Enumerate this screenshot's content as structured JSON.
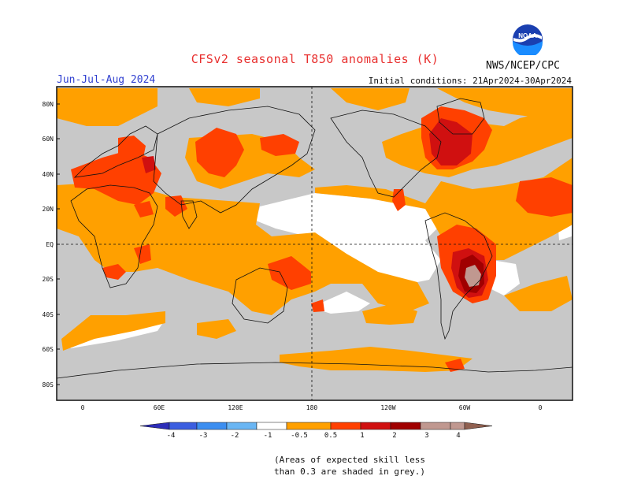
{
  "header": {
    "title": "CFSv2 seasonal T850 anomalies (K)",
    "period": "Jun-Jul-Aug 2024",
    "initial_conditions": "Initial conditions: 21Apr2024-30Apr2024",
    "organization": "NWS/NCEP/CPC",
    "logo_text": "NOAA"
  },
  "map": {
    "lat_labels": [
      "80N",
      "60N",
      "40N",
      "20N",
      "EQ",
      "20S",
      "40S",
      "60S",
      "80S"
    ],
    "lon_labels": [
      "0",
      "60E",
      "120E",
      "180",
      "120W",
      "60W",
      "0"
    ],
    "land_mask_color": "#c8c8c8",
    "regions": [
      {
        "name": "arctic-warm",
        "level": "0.5-1"
      },
      {
        "name": "europe-warm",
        "level": "1-2"
      },
      {
        "name": "siberia-warm",
        "level": "1-2"
      },
      {
        "name": "greenland-warm",
        "level": "1-2"
      },
      {
        "name": "north-atlantic-warm",
        "level": "1-2"
      },
      {
        "name": "southern-south-america",
        "level": "3-4"
      },
      {
        "name": "tropical-pacific-neutral",
        "level": "-0.5-0.5"
      },
      {
        "name": "southern-ocean-neutral",
        "level": "-0.5-0.5"
      }
    ]
  },
  "colorbar": {
    "ticks": [
      "-4",
      "-3",
      "-2",
      "-1",
      "-0.5",
      "0.5",
      "1",
      "2",
      "3",
      "4"
    ],
    "colors": [
      "#2d2db8",
      "#3b5ee0",
      "#3c8ef0",
      "#6ab6f4",
      "#ffffff",
      "#ffa000",
      "#ff4000",
      "#d01010",
      "#a00000",
      "#c09890",
      "#906050"
    ]
  },
  "note": {
    "line1": "(Areas of expected skill less",
    "line2": "than 0.3 are shaded in grey.)"
  }
}
